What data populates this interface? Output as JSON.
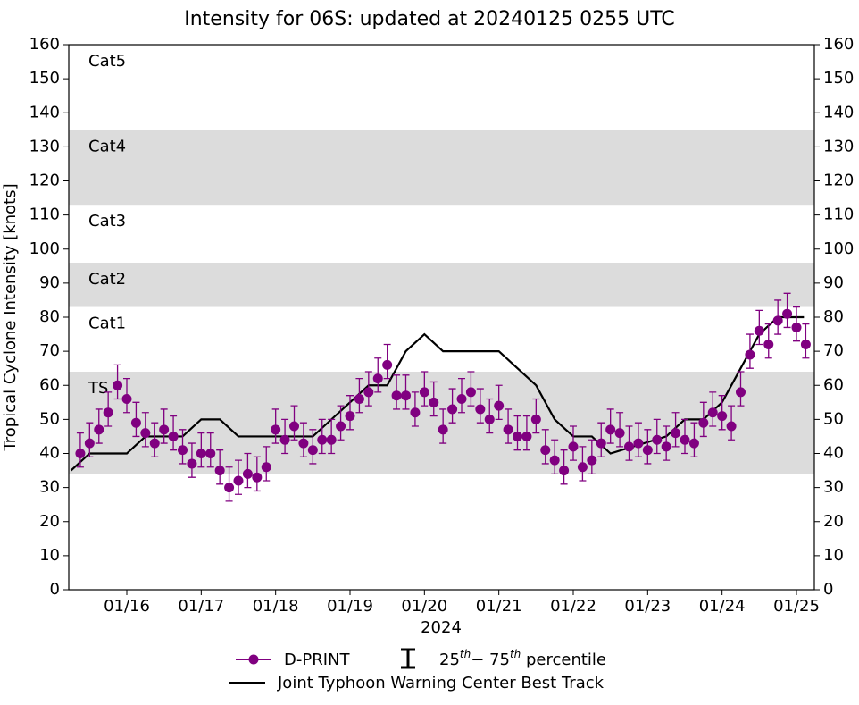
{
  "chart_data": {
    "type": "line",
    "title": "Intensity for 06S: updated at 20240125 0255 UTC",
    "ylabel": "Tropical Cyclone Intensity [knots]",
    "xlabel": "2024",
    "xlim": [
      15.22,
      25.24
    ],
    "xticks": [
      {
        "value": 16,
        "label": "01/16"
      },
      {
        "value": 17,
        "label": "01/17"
      },
      {
        "value": 18,
        "label": "01/18"
      },
      {
        "value": 19,
        "label": "01/19"
      },
      {
        "value": 20,
        "label": "01/20"
      },
      {
        "value": 21,
        "label": "01/21"
      },
      {
        "value": 22,
        "label": "01/22"
      },
      {
        "value": 23,
        "label": "01/23"
      },
      {
        "value": 24,
        "label": "01/24"
      },
      {
        "value": 25,
        "label": "01/25"
      }
    ],
    "ylim": [
      0,
      160
    ],
    "yticks": [
      0,
      10,
      20,
      30,
      40,
      50,
      60,
      70,
      80,
      90,
      100,
      110,
      120,
      130,
      140,
      150,
      160
    ],
    "bands": [
      {
        "label": "TS",
        "lo": 34,
        "hi": 64,
        "shaded": true
      },
      {
        "label": "Cat1",
        "lo": 64,
        "hi": 83,
        "shaded": false
      },
      {
        "label": "Cat2",
        "lo": 83,
        "hi": 96,
        "shaded": true
      },
      {
        "label": "Cat3",
        "lo": 96,
        "hi": 113,
        "shaded": false
      },
      {
        "label": "Cat4",
        "lo": 113,
        "hi": 135,
        "shaded": true
      },
      {
        "label": "Cat5",
        "lo": 135,
        "hi": 160,
        "shaded": false
      }
    ],
    "band_color": "#dcdcdc",
    "percentile_label": [
      "25",
      "th",
      "− 75",
      "th",
      " percentile"
    ],
    "series": [
      {
        "name": "D-PRINT",
        "color": "#800080",
        "x": [
          15.375,
          15.5,
          15.625,
          15.75,
          15.875,
          16,
          16.125,
          16.25,
          16.375,
          16.5,
          16.625,
          16.75,
          16.875,
          17,
          17.125,
          17.25,
          17.375,
          17.5,
          17.625,
          17.75,
          17.875,
          18,
          18.125,
          18.25,
          18.375,
          18.5,
          18.625,
          18.75,
          18.875,
          19,
          19.125,
          19.25,
          19.375,
          19.5,
          19.625,
          19.75,
          19.875,
          20,
          20.125,
          20.25,
          20.375,
          20.5,
          20.625,
          20.75,
          20.875,
          21,
          21.125,
          21.25,
          21.375,
          21.5,
          21.625,
          21.75,
          21.875,
          22,
          22.125,
          22.25,
          22.375,
          22.5,
          22.625,
          22.75,
          22.875,
          23,
          23.125,
          23.25,
          23.375,
          23.5,
          23.625,
          23.75,
          23.875,
          24,
          24.125,
          24.25,
          24.375,
          24.5,
          24.625,
          24.75,
          24.875,
          25,
          25.125
        ],
        "values": [
          40,
          43,
          47,
          52,
          60,
          56,
          49,
          46,
          43,
          47,
          45,
          41,
          37,
          40,
          40,
          35,
          30,
          32,
          34,
          33,
          36,
          47,
          44,
          48,
          43,
          41,
          44,
          44,
          48,
          51,
          56,
          58,
          62,
          66,
          57,
          57,
          52,
          58,
          55,
          47,
          53,
          56,
          58,
          53,
          50,
          54,
          47,
          45,
          45,
          50,
          41,
          38,
          35,
          42,
          36,
          38,
          43,
          47,
          46,
          42,
          43,
          41,
          44,
          42,
          46,
          44,
          43,
          49,
          52,
          51,
          48,
          58,
          69,
          76,
          72,
          79,
          81,
          77,
          72
        ],
        "q25": [
          36,
          39,
          43,
          48,
          56,
          52,
          45,
          42,
          39,
          43,
          41,
          37,
          33,
          36,
          36,
          31,
          26,
          28,
          30,
          29,
          32,
          43,
          40,
          44,
          39,
          37,
          40,
          40,
          44,
          47,
          52,
          54,
          58,
          62,
          53,
          53,
          48,
          54,
          51,
          43,
          49,
          52,
          54,
          49,
          46,
          50,
          43,
          41,
          41,
          46,
          37,
          34,
          31,
          38,
          32,
          34,
          39,
          43,
          42,
          38,
          39,
          37,
          40,
          38,
          42,
          40,
          39,
          45,
          48,
          47,
          44,
          54,
          65,
          72,
          68,
          75,
          77,
          73,
          68
        ],
        "q75": [
          46,
          49,
          53,
          58,
          66,
          62,
          55,
          52,
          49,
          53,
          51,
          47,
          43,
          46,
          46,
          41,
          36,
          38,
          40,
          39,
          42,
          53,
          50,
          54,
          49,
          47,
          50,
          50,
          54,
          57,
          62,
          64,
          68,
          72,
          63,
          63,
          58,
          64,
          61,
          53,
          59,
          62,
          64,
          59,
          56,
          60,
          53,
          51,
          51,
          56,
          47,
          44,
          41,
          48,
          42,
          44,
          49,
          53,
          52,
          48,
          49,
          47,
          50,
          48,
          52,
          50,
          49,
          55,
          58,
          57,
          54,
          64,
          75,
          82,
          78,
          85,
          87,
          83,
          78
        ]
      },
      {
        "name": "Joint Typhoon Warning Center Best Track",
        "color": "#000000",
        "x": [
          15.25,
          15.5,
          16,
          16.25,
          16.75,
          17,
          17.25,
          17.5,
          18.5,
          18.75,
          19,
          19.25,
          19.5,
          19.75,
          20,
          20.25,
          21,
          21.25,
          21.5,
          21.75,
          22,
          22.25,
          22.5,
          23.25,
          23.5,
          23.75,
          24,
          24.25,
          24.5,
          24.75,
          25.1
        ],
        "values": [
          35,
          40,
          40,
          45,
          45,
          50,
          50,
          45,
          45,
          50,
          55,
          60,
          60,
          70,
          75,
          70,
          70,
          65,
          60,
          50,
          45,
          45,
          40,
          45,
          50,
          50,
          55,
          65,
          75,
          80,
          80
        ]
      }
    ]
  }
}
